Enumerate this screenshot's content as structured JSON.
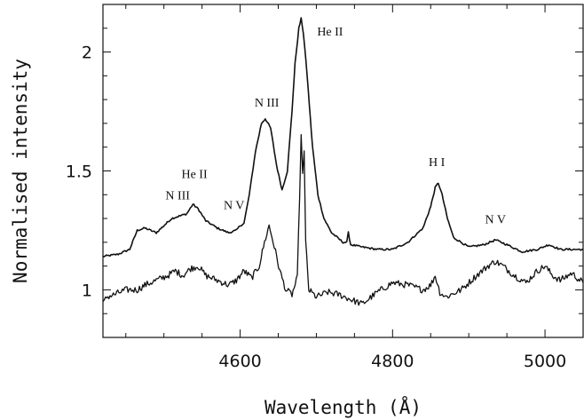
{
  "chart_data": {
    "type": "line",
    "xlabel": "Wavelength (Å)",
    "ylabel": "Normalised intensity",
    "xlim": [
      4420,
      5050
    ],
    "ylim": [
      0.8,
      2.2
    ],
    "x_ticks": [
      {
        "value": 4600,
        "label": "4600"
      },
      {
        "value": 4800,
        "label": "4800"
      },
      {
        "value": 5000,
        "label": "5000"
      }
    ],
    "y_ticks": [
      {
        "value": 1,
        "label": "1"
      },
      {
        "value": 1.5,
        "label": "1.5"
      },
      {
        "value": 2,
        "label": "2"
      }
    ],
    "series": [
      {
        "x": [
          4420,
          4440,
          4455,
          4465,
          4475,
          4490,
          4500,
          4510,
          4520,
          4530,
          4538,
          4545,
          4555,
          4570,
          4585,
          4595,
          4600,
          4605,
          4612,
          4620,
          4628,
          4633,
          4640,
          4648,
          4655,
          4662,
          4668,
          4672,
          4677,
          4680,
          4683,
          4688,
          4695,
          4702,
          4710,
          4720,
          4735,
          4740,
          4742,
          4745,
          4760,
          4780,
          4800,
          4820,
          4840,
          4850,
          4856,
          4860,
          4865,
          4872,
          4880,
          4900,
          4920,
          4935,
          4950,
          4970,
          4990,
          5005,
          5020,
          5050
        ],
        "y": [
          1.14,
          1.15,
          1.17,
          1.25,
          1.26,
          1.24,
          1.27,
          1.3,
          1.31,
          1.32,
          1.36,
          1.34,
          1.29,
          1.26,
          1.24,
          1.25,
          1.27,
          1.28,
          1.4,
          1.58,
          1.7,
          1.72,
          1.68,
          1.52,
          1.42,
          1.5,
          1.75,
          1.95,
          2.1,
          2.14,
          2.08,
          1.9,
          1.6,
          1.4,
          1.3,
          1.24,
          1.2,
          1.2,
          1.24,
          1.19,
          1.18,
          1.17,
          1.17,
          1.2,
          1.26,
          1.35,
          1.43,
          1.45,
          1.4,
          1.3,
          1.22,
          1.18,
          1.19,
          1.21,
          1.19,
          1.16,
          1.17,
          1.19,
          1.17,
          1.17
        ]
      },
      {
        "x": [
          4420,
          4425,
          4435,
          4450,
          4465,
          4475,
          4490,
          4505,
          4515,
          4525,
          4535,
          4545,
          4555,
          4570,
          4585,
          4595,
          4605,
          4615,
          4625,
          4632,
          4638,
          4645,
          4652,
          4660,
          4668,
          4675,
          4678,
          4680,
          4682,
          4684,
          4686,
          4690,
          4700,
          4715,
          4730,
          4745,
          4760,
          4780,
          4800,
          4820,
          4840,
          4850,
          4856,
          4862,
          4870,
          4890,
          4910,
          4925,
          4935,
          4945,
          4960,
          4975,
          4990,
          5000,
          5010,
          5020,
          5035,
          5050
        ],
        "y": [
          0.94,
          0.97,
          0.98,
          1.0,
          1.0,
          1.02,
          1.04,
          1.06,
          1.08,
          1.06,
          1.09,
          1.1,
          1.06,
          1.04,
          1.02,
          1.04,
          1.08,
          1.05,
          1.1,
          1.2,
          1.27,
          1.18,
          1.08,
          1.0,
          0.98,
          1.05,
          1.4,
          1.64,
          1.5,
          1.58,
          1.2,
          1.0,
          0.97,
          0.99,
          0.98,
          0.96,
          0.94,
          0.99,
          1.03,
          1.02,
          1.0,
          1.02,
          1.06,
          0.99,
          0.97,
          1.0,
          1.06,
          1.1,
          1.12,
          1.1,
          1.06,
          1.03,
          1.08,
          1.1,
          1.06,
          1.04,
          1.07,
          1.03
        ]
      }
    ],
    "annotations": [
      {
        "text": "N III",
        "x": 4518,
        "y": 1.38
      },
      {
        "text": "He II",
        "x": 4540,
        "y": 1.47
      },
      {
        "text": "N V",
        "x": 4592,
        "y": 1.34
      },
      {
        "text": "N III",
        "x": 4635,
        "y": 1.77
      },
      {
        "text": "He II",
        "x": 4718,
        "y": 2.07
      },
      {
        "text": "H I",
        "x": 4858,
        "y": 1.52
      },
      {
        "text": "N V",
        "x": 4935,
        "y": 1.28
      }
    ]
  }
}
